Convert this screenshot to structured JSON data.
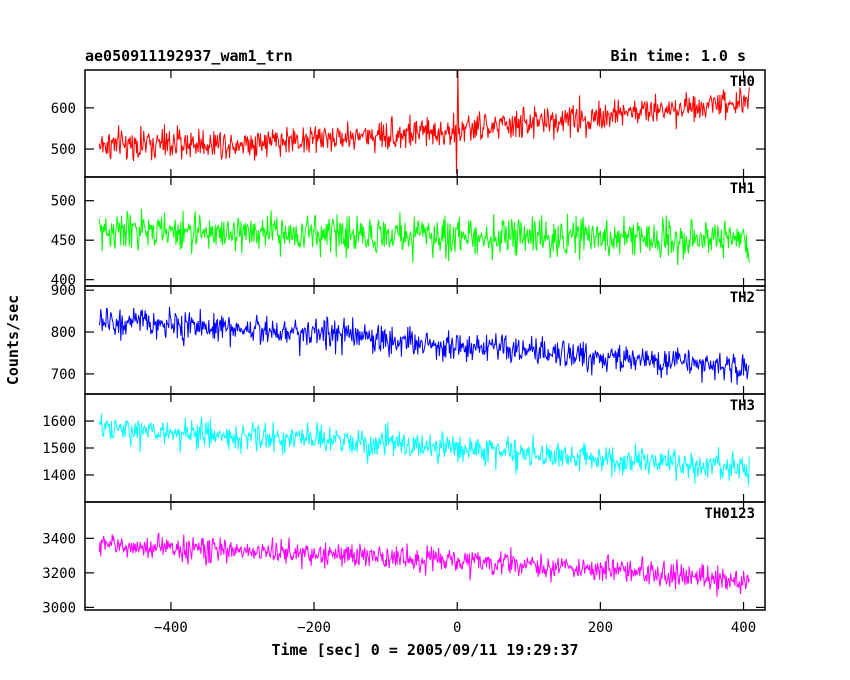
{
  "header": {
    "title": "ae050911192937_wam1_trn",
    "bin_time": "Bin time: 1.0 s"
  },
  "chart_data": {
    "type": "line",
    "xlabel": "Time [sec] 0 = 2005/09/11 19:29:37",
    "ylabel": "Counts/sec",
    "xlim": [
      -520,
      430
    ],
    "x_ticks": [
      -400,
      -200,
      0,
      200,
      400
    ],
    "x_range": [
      -500,
      408
    ],
    "panels": [
      {
        "name": "TH0",
        "color": "#ff0000",
        "ylim": [
          432,
          692
        ],
        "yticks": [
          500,
          600
        ],
        "trend": [
          {
            "x": -500,
            "y": 510
          },
          {
            "x": -300,
            "y": 515
          },
          {
            "x": -100,
            "y": 535
          },
          {
            "x": 0,
            "y": 545
          },
          {
            "x": 200,
            "y": 580
          },
          {
            "x": 408,
            "y": 620
          }
        ],
        "noise": 32,
        "spikes": [
          {
            "x": 1,
            "y": 690
          },
          {
            "x": -1,
            "y": 440
          }
        ]
      },
      {
        "name": "TH1",
        "color": "#00ff00",
        "ylim": [
          392,
          530
        ],
        "yticks": [
          400,
          450,
          500
        ],
        "trend": [
          {
            "x": -500,
            "y": 462
          },
          {
            "x": 0,
            "y": 455
          },
          {
            "x": 408,
            "y": 452
          }
        ],
        "noise": 20,
        "spikes": []
      },
      {
        "name": "TH2",
        "color": "#0000ff",
        "ylim": [
          652,
          910
        ],
        "yticks": [
          700,
          800,
          900
        ],
        "trend": [
          {
            "x": -500,
            "y": 825
          },
          {
            "x": -200,
            "y": 800
          },
          {
            "x": 0,
            "y": 765
          },
          {
            "x": 200,
            "y": 740
          },
          {
            "x": 408,
            "y": 715
          }
        ],
        "noise": 30,
        "spikes": []
      },
      {
        "name": "TH3",
        "color": "#00ffff",
        "ylim": [
          1300,
          1700
        ],
        "yticks": [
          1400,
          1500,
          1600
        ],
        "trend": [
          {
            "x": -500,
            "y": 1570
          },
          {
            "x": -200,
            "y": 1530
          },
          {
            "x": 0,
            "y": 1500
          },
          {
            "x": 200,
            "y": 1460
          },
          {
            "x": 408,
            "y": 1420
          }
        ],
        "noise": 45,
        "spikes": []
      },
      {
        "name": "TH0123",
        "color": "#ff00ff",
        "ylim": [
          2985,
          3610
        ],
        "yticks": [
          3000,
          3200,
          3400
        ],
        "trend": [
          {
            "x": -500,
            "y": 3360
          },
          {
            "x": -200,
            "y": 3310
          },
          {
            "x": 0,
            "y": 3270
          },
          {
            "x": 200,
            "y": 3220
          },
          {
            "x": 408,
            "y": 3150
          }
        ],
        "noise": 60,
        "spikes": []
      }
    ]
  }
}
